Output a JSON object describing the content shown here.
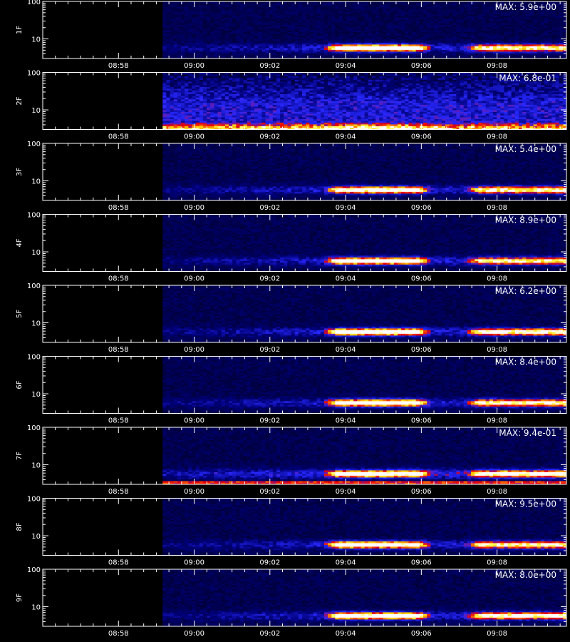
{
  "chart_data": {
    "type": "heatmap",
    "x_range": [
      "08:56:00",
      "09:09:50"
    ],
    "y_log_scale": true,
    "y_range": [
      3,
      100
    ],
    "y_ticks": [
      "100",
      "10"
    ],
    "x_ticks": [
      "08:58",
      "09:00",
      "09:02",
      "09:04",
      "09:06",
      "09:08"
    ],
    "data_start": "08:59:10",
    "colormap": "black-blue-red-yellow-white",
    "panels": [
      {
        "label": "1F",
        "max_text": "MAX: 5.9e+00",
        "pattern": "band",
        "events": [
          {
            "start": "09:03:45",
            "end": "09:05:50",
            "peak": 0.95
          },
          {
            "start": "09:07:30",
            "end": "09:09:50",
            "peak": 0.7
          }
        ]
      },
      {
        "label": "2F",
        "max_text": "MAX: 6.8e-01",
        "pattern": "broadband",
        "events": [
          {
            "start": "09:03:40",
            "end": "09:06:00",
            "peak": 1.0
          }
        ]
      },
      {
        "label": "3F",
        "max_text": "MAX: 5.4e+00",
        "pattern": "band",
        "events": [
          {
            "start": "09:03:45",
            "end": "09:05:50",
            "peak": 0.85
          },
          {
            "start": "09:07:30",
            "end": "09:09:50",
            "peak": 0.7
          }
        ]
      },
      {
        "label": "4F",
        "max_text": "MAX: 8.9e+00",
        "pattern": "band",
        "events": [
          {
            "start": "09:03:45",
            "end": "09:05:50",
            "peak": 0.95
          },
          {
            "start": "09:07:30",
            "end": "09:09:50",
            "peak": 0.7
          }
        ]
      },
      {
        "label": "5F",
        "max_text": "MAX: 6.2e+00",
        "pattern": "band",
        "events": [
          {
            "start": "09:03:45",
            "end": "09:05:50",
            "peak": 0.95
          },
          {
            "start": "09:07:30",
            "end": "09:09:50",
            "peak": 0.75
          }
        ]
      },
      {
        "label": "6F",
        "max_text": "MAX: 8.4e+00",
        "pattern": "band",
        "events": [
          {
            "start": "09:03:45",
            "end": "09:05:50",
            "peak": 0.95
          },
          {
            "start": "09:07:30",
            "end": "09:09:50",
            "peak": 0.75
          }
        ]
      },
      {
        "label": "7F",
        "max_text": "MAX: 9.4e-01",
        "pattern": "band_noisy",
        "events": [
          {
            "start": "09:03:45",
            "end": "09:05:50",
            "peak": 0.9
          },
          {
            "start": "09:07:30",
            "end": "09:09:50",
            "peak": 0.75
          }
        ]
      },
      {
        "label": "8F",
        "max_text": "MAX: 9.5e+00",
        "pattern": "band",
        "events": [
          {
            "start": "09:03:45",
            "end": "09:05:50",
            "peak": 0.95
          },
          {
            "start": "09:07:30",
            "end": "09:09:50",
            "peak": 0.7
          }
        ]
      },
      {
        "label": "9F",
        "max_text": "MAX: 8.0e+00",
        "pattern": "band",
        "events": [
          {
            "start": "09:03:45",
            "end": "09:05:50",
            "peak": 0.95
          },
          {
            "start": "09:07:30",
            "end": "09:09:50",
            "peak": 0.75
          }
        ]
      }
    ]
  }
}
